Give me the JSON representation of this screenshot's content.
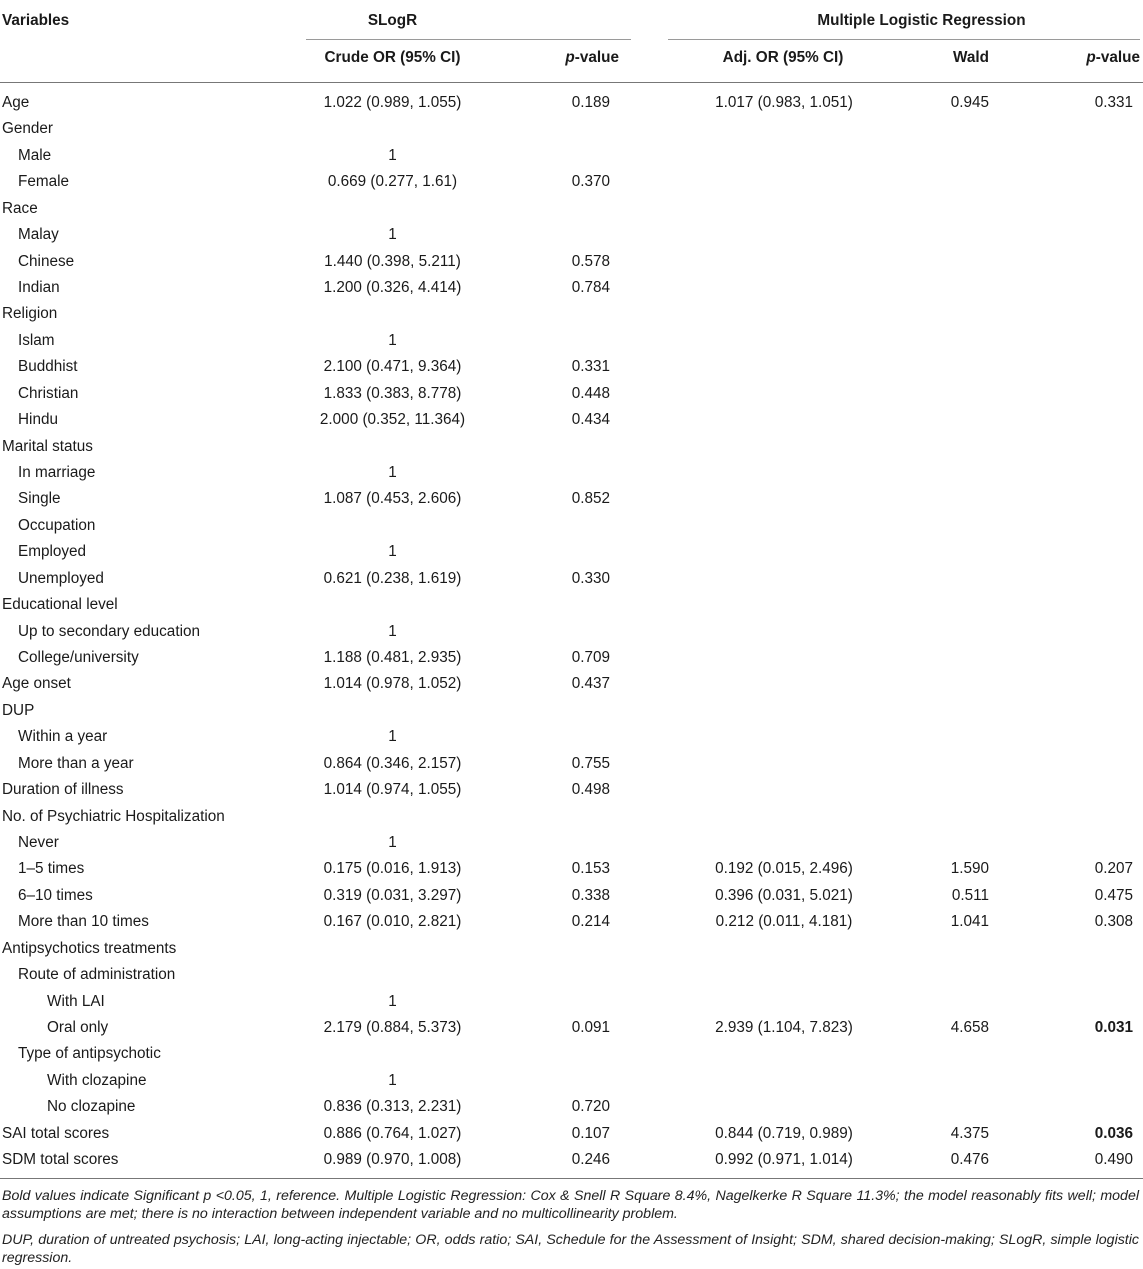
{
  "header": {
    "variables": "Variables",
    "slogr": "SLogR",
    "mlr": "Multiple Logistic Regression",
    "crude_or": "Crude OR (95% CI)",
    "p_value_italic": "p",
    "p_value_rest": "-value",
    "adj_or": "Adj. OR (95% CI)",
    "wald": "Wald"
  },
  "rows": [
    {
      "label": "Age",
      "indent": 0,
      "crude": "1.022 (0.989, 1.055)",
      "p1": "0.189",
      "adj": "1.017 (0.983, 1.051)",
      "wald": "0.945",
      "p2": "0.331",
      "p2_bold": false
    },
    {
      "label": "Gender",
      "indent": 0,
      "crude": "",
      "p1": "",
      "adj": "",
      "wald": "",
      "p2": "",
      "p2_bold": false
    },
    {
      "label": "Male",
      "indent": 1,
      "crude": "1",
      "p1": "",
      "adj": "",
      "wald": "",
      "p2": "",
      "p2_bold": false
    },
    {
      "label": "Female",
      "indent": 1,
      "crude": "0.669 (0.277, 1.61)",
      "p1": "0.370",
      "adj": "",
      "wald": "",
      "p2": "",
      "p2_bold": false
    },
    {
      "label": "Race",
      "indent": 0,
      "crude": "",
      "p1": "",
      "adj": "",
      "wald": "",
      "p2": "",
      "p2_bold": false
    },
    {
      "label": "Malay",
      "indent": 1,
      "crude": "1",
      "p1": "",
      "adj": "",
      "wald": "",
      "p2": "",
      "p2_bold": false
    },
    {
      "label": "Chinese",
      "indent": 1,
      "crude": "1.440 (0.398, 5.211)",
      "p1": "0.578",
      "adj": "",
      "wald": "",
      "p2": "",
      "p2_bold": false
    },
    {
      "label": "Indian",
      "indent": 1,
      "crude": "1.200 (0.326, 4.414)",
      "p1": "0.784",
      "adj": "",
      "wald": "",
      "p2": "",
      "p2_bold": false
    },
    {
      "label": "Religion",
      "indent": 0,
      "crude": "",
      "p1": "",
      "adj": "",
      "wald": "",
      "p2": "",
      "p2_bold": false
    },
    {
      "label": "Islam",
      "indent": 1,
      "crude": "1",
      "p1": "",
      "adj": "",
      "wald": "",
      "p2": "",
      "p2_bold": false
    },
    {
      "label": "Buddhist",
      "indent": 1,
      "crude": "2.100 (0.471, 9.364)",
      "p1": "0.331",
      "adj": "",
      "wald": "",
      "p2": "",
      "p2_bold": false
    },
    {
      "label": "Christian",
      "indent": 1,
      "crude": "1.833 (0.383, 8.778)",
      "p1": "0.448",
      "adj": "",
      "wald": "",
      "p2": "",
      "p2_bold": false
    },
    {
      "label": "Hindu",
      "indent": 1,
      "crude": "2.000 (0.352, 11.364)",
      "p1": "0.434",
      "adj": "",
      "wald": "",
      "p2": "",
      "p2_bold": false
    },
    {
      "label": "Marital status",
      "indent": 0,
      "crude": "",
      "p1": "",
      "adj": "",
      "wald": "",
      "p2": "",
      "p2_bold": false
    },
    {
      "label": "In marriage",
      "indent": 1,
      "crude": "1",
      "p1": "",
      "adj": "",
      "wald": "",
      "p2": "",
      "p2_bold": false
    },
    {
      "label": "Single",
      "indent": 1,
      "crude": "1.087 (0.453, 2.606)",
      "p1": "0.852",
      "adj": "",
      "wald": "",
      "p2": "",
      "p2_bold": false
    },
    {
      "label": "Occupation",
      "indent": 1,
      "crude": "",
      "p1": "",
      "adj": "",
      "wald": "",
      "p2": "",
      "p2_bold": false
    },
    {
      "label": "Employed",
      "indent": 1,
      "crude": "1",
      "p1": "",
      "adj": "",
      "wald": "",
      "p2": "",
      "p2_bold": false
    },
    {
      "label": "Unemployed",
      "indent": 1,
      "crude": "0.621 (0.238, 1.619)",
      "p1": "0.330",
      "adj": "",
      "wald": "",
      "p2": "",
      "p2_bold": false
    },
    {
      "label": "Educational level",
      "indent": 0,
      "crude": "",
      "p1": "",
      "adj": "",
      "wald": "",
      "p2": "",
      "p2_bold": false
    },
    {
      "label": "Up to secondary education",
      "indent": 1,
      "crude": "1",
      "p1": "",
      "adj": "",
      "wald": "",
      "p2": "",
      "p2_bold": false
    },
    {
      "label": "College/university",
      "indent": 1,
      "crude": "1.188 (0.481, 2.935)",
      "p1": "0.709",
      "adj": "",
      "wald": "",
      "p2": "",
      "p2_bold": false
    },
    {
      "label": "Age onset",
      "indent": 0,
      "crude": "1.014 (0.978, 1.052)",
      "p1": "0.437",
      "adj": "",
      "wald": "",
      "p2": "",
      "p2_bold": false
    },
    {
      "label": "DUP",
      "indent": 0,
      "crude": "",
      "p1": "",
      "adj": "",
      "wald": "",
      "p2": "",
      "p2_bold": false
    },
    {
      "label": "Within a year",
      "indent": 1,
      "crude": "1",
      "p1": "",
      "adj": "",
      "wald": "",
      "p2": "",
      "p2_bold": false
    },
    {
      "label": "More than a year",
      "indent": 1,
      "crude": "0.864 (0.346, 2.157)",
      "p1": "0.755",
      "adj": "",
      "wald": "",
      "p2": "",
      "p2_bold": false
    },
    {
      "label": "Duration of illness",
      "indent": 0,
      "crude": "1.014 (0.974, 1.055)",
      "p1": "0.498",
      "adj": "",
      "wald": "",
      "p2": "",
      "p2_bold": false
    },
    {
      "label": "No. of Psychiatric Hospitalization",
      "indent": 0,
      "crude": "",
      "p1": "",
      "adj": "",
      "wald": "",
      "p2": "",
      "p2_bold": false
    },
    {
      "label": "Never",
      "indent": 1,
      "crude": "1",
      "p1": "",
      "adj": "",
      "wald": "",
      "p2": "",
      "p2_bold": false
    },
    {
      "label": "1–5 times",
      "indent": 1,
      "crude": "0.175 (0.016, 1.913)",
      "p1": "0.153",
      "adj": "0.192 (0.015, 2.496)",
      "wald": "1.590",
      "p2": "0.207",
      "p2_bold": false
    },
    {
      "label": "6–10 times",
      "indent": 1,
      "crude": "0.319 (0.031, 3.297)",
      "p1": "0.338",
      "adj": "0.396 (0.031, 5.021)",
      "wald": "0.511",
      "p2": "0.475",
      "p2_bold": false
    },
    {
      "label": "More than 10 times",
      "indent": 1,
      "crude": "0.167 (0.010, 2.821)",
      "p1": "0.214",
      "adj": "0.212 (0.011, 4.181)",
      "wald": "1.041",
      "p2": "0.308",
      "p2_bold": false
    },
    {
      "label": "Antipsychotics treatments",
      "indent": 0,
      "crude": "",
      "p1": "",
      "adj": "",
      "wald": "",
      "p2": "",
      "p2_bold": false
    },
    {
      "label": "Route of administration",
      "indent": 1,
      "crude": "",
      "p1": "",
      "adj": "",
      "wald": "",
      "p2": "",
      "p2_bold": false
    },
    {
      "label": "With LAI",
      "indent": 2,
      "crude": "1",
      "p1": "",
      "adj": "",
      "wald": "",
      "p2": "",
      "p2_bold": false
    },
    {
      "label": "Oral only",
      "indent": 2,
      "crude": "2.179 (0.884, 5.373)",
      "p1": "0.091",
      "adj": "2.939 (1.104, 7.823)",
      "wald": "4.658",
      "p2": "0.031",
      "p2_bold": true
    },
    {
      "label": "Type of antipsychotic",
      "indent": 1,
      "crude": "",
      "p1": "",
      "adj": "",
      "wald": "",
      "p2": "",
      "p2_bold": false
    },
    {
      "label": "With clozapine",
      "indent": 2,
      "crude": "1",
      "p1": "",
      "adj": "",
      "wald": "",
      "p2": "",
      "p2_bold": false
    },
    {
      "label": "No clozapine",
      "indent": 2,
      "crude": "0.836 (0.313, 2.231)",
      "p1": "0.720",
      "adj": "",
      "wald": "",
      "p2": "",
      "p2_bold": false
    },
    {
      "label": "SAI total scores",
      "indent": 0,
      "crude": "0.886 (0.764, 1.027)",
      "p1": "0.107",
      "adj": "0.844 (0.719, 0.989)",
      "wald": "4.375",
      "p2": "0.036",
      "p2_bold": true
    },
    {
      "label": "SDM total scores",
      "indent": 0,
      "crude": "0.989 (0.970, 1.008)",
      "p1": "0.246",
      "adj": "0.992 (0.971, 1.014)",
      "wald": "0.476",
      "p2": "0.490",
      "p2_bold": false
    }
  ],
  "footnotes": {
    "note1": "Bold values indicate Significant p <0.05, 1, reference. Multiple Logistic Regression: Cox & Snell R Square 8.4%, Nagelkerke R Square 11.3%; the model reasonably fits well; model assumptions are met; there is no interaction between independent variable and no multicollinearity problem.",
    "note2": "DUP, duration of untreated psychosis; LAI, long-acting injectable; OR, odds ratio; SAI, Schedule for the Assessment of Insight; SDM, shared decision-making; SLogR, simple logistic regression."
  }
}
